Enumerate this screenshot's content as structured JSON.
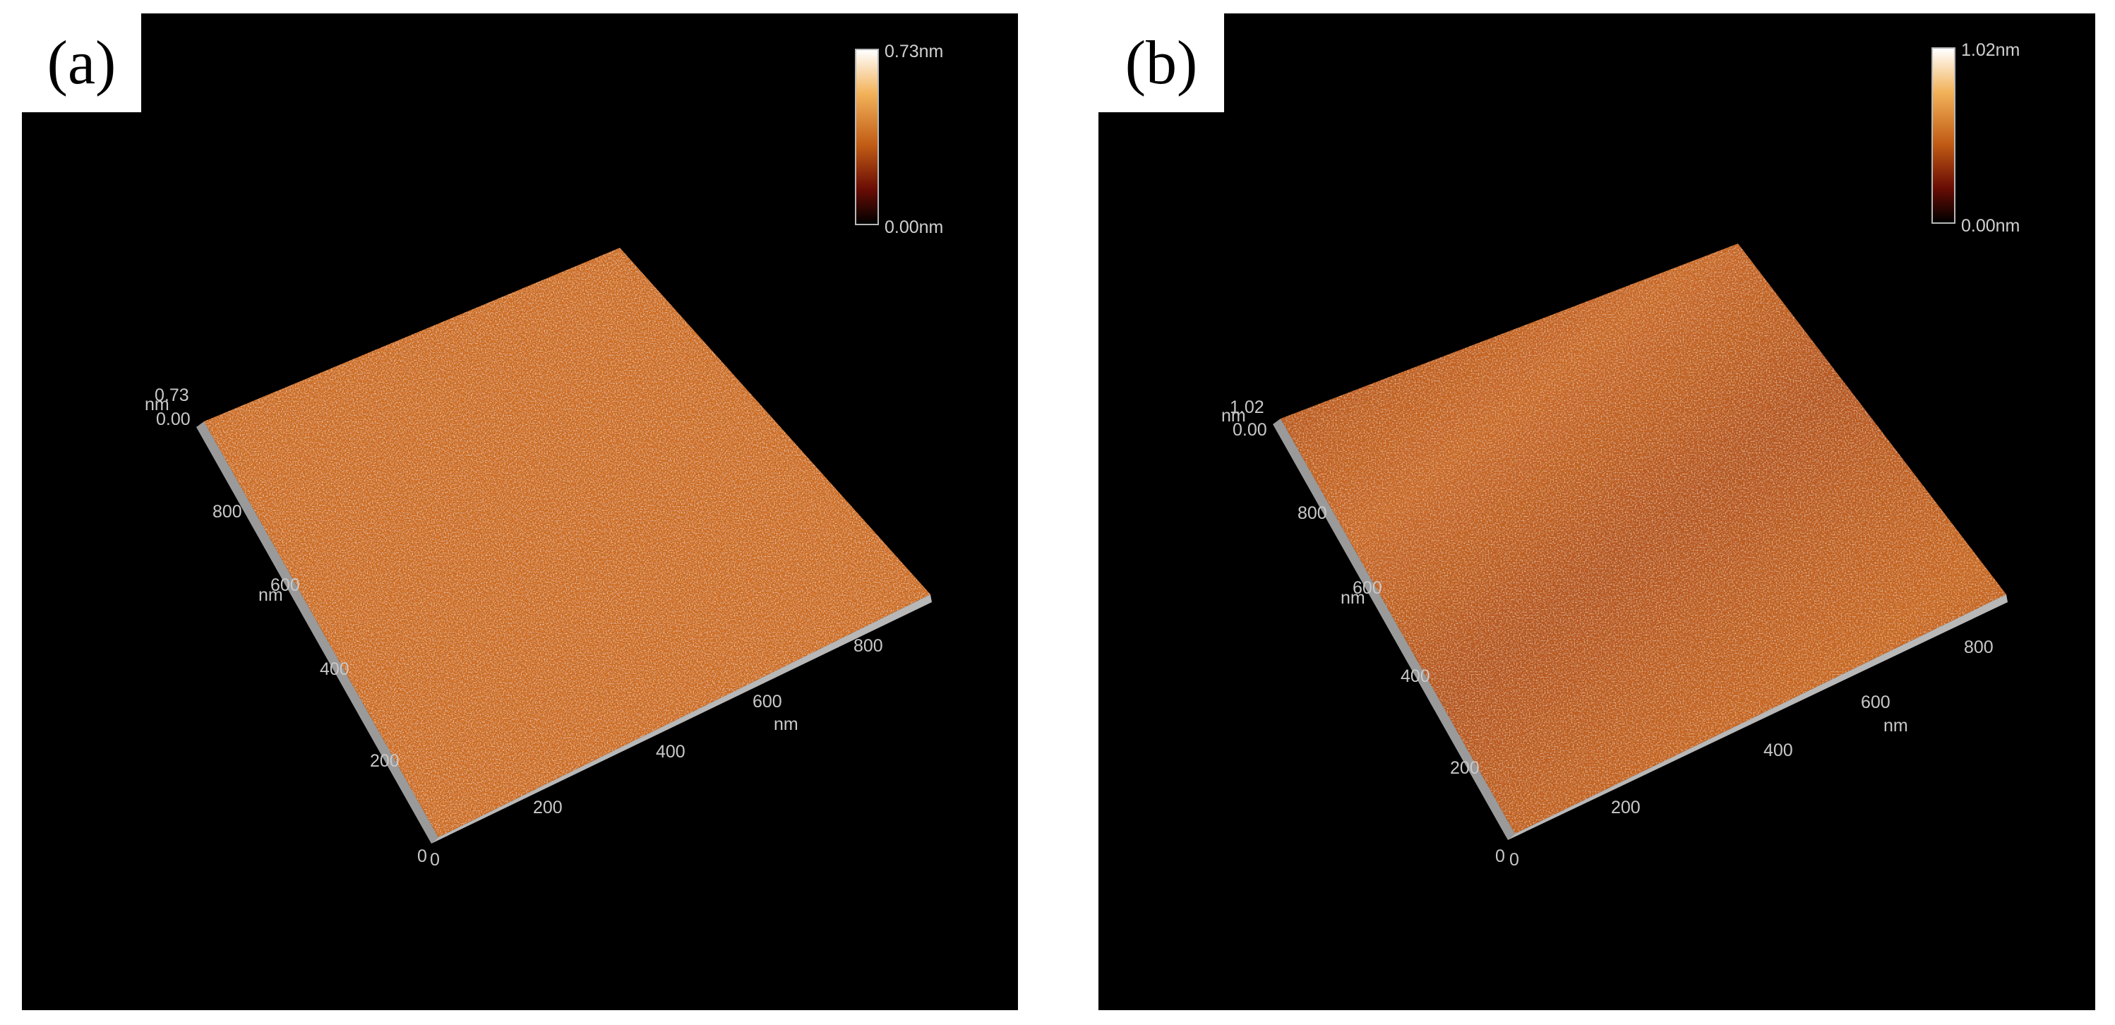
{
  "panels": [
    {
      "label": "(a)",
      "colorbar": {
        "max_label": "0.73nm",
        "min_label": "0.00nm",
        "colors": [
          "#ffffff",
          "#f2b25a",
          "#c05b14",
          "#6a0d05",
          "#000000"
        ]
      },
      "z_axis": {
        "unit": "nm",
        "top": "0.73",
        "bottom": "0.00"
      },
      "y_axis": {
        "unit": "nm",
        "ticks": [
          "800",
          "600",
          "400",
          "200",
          "0"
        ]
      },
      "x_axis": {
        "unit": "nm",
        "ticks": [
          "0",
          "200",
          "400",
          "600",
          "800"
        ]
      },
      "surface_color": "#cc6a1e",
      "roughness_note": "uniform"
    },
    {
      "label": "(b)",
      "colorbar": {
        "max_label": "1.02nm",
        "min_label": "0.00nm",
        "colors": [
          "#ffffff",
          "#f2b25a",
          "#c05b14",
          "#6a0d05",
          "#000000"
        ]
      },
      "z_axis": {
        "unit": "nm",
        "top": "1.02",
        "bottom": "0.00"
      },
      "y_axis": {
        "unit": "nm",
        "ticks": [
          "800",
          "600",
          "400",
          "200",
          "0"
        ]
      },
      "x_axis": {
        "unit": "nm",
        "ticks": [
          "0",
          "200",
          "400",
          "600",
          "800"
        ]
      },
      "surface_color": "#bf5c18",
      "roughness_note": "banded"
    }
  ]
}
